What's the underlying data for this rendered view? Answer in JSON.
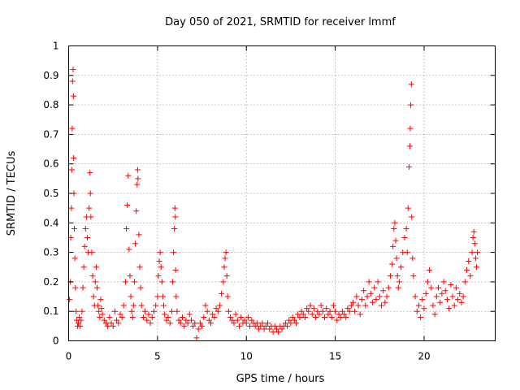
{
  "chart_data": {
    "type": "scatter",
    "title": "Day 050 of 2021, SRMTID for receiver lmmf",
    "xlabel": "GPS time / hours",
    "ylabel": "SRMTID / TECUs",
    "xlim": [
      0,
      24
    ],
    "ylim": [
      0,
      1
    ],
    "x_ticks": [
      "0",
      "5",
      "10",
      "15",
      "20"
    ],
    "y_ticks": [
      "0",
      "0.1",
      "0.2",
      "0.3",
      "0.4",
      "0.5",
      "0.6",
      "0.7",
      "0.8",
      "0.9",
      "1"
    ],
    "grid": true,
    "marker": "+",
    "series": [
      {
        "name": "SRMTID",
        "color": "#ff0000",
        "points": [
          [
            0.05,
            0.14
          ],
          [
            0.1,
            0.2
          ],
          [
            0.12,
            0.35
          ],
          [
            0.15,
            0.45
          ],
          [
            0.18,
            0.58
          ],
          [
            0.2,
            0.72
          ],
          [
            0.22,
            0.88
          ],
          [
            0.25,
            0.92
          ],
          [
            0.27,
            0.83
          ],
          [
            0.28,
            0.62
          ],
          [
            0.3,
            0.5
          ],
          [
            0.32,
            0.38
          ],
          [
            0.35,
            0.28
          ],
          [
            0.38,
            0.18
          ],
          [
            0.42,
            0.1
          ],
          [
            0.45,
            0.07
          ],
          [
            0.5,
            0.05
          ],
          [
            0.55,
            0.06
          ],
          [
            0.6,
            0.08
          ],
          [
            0.65,
            0.05
          ],
          [
            0.7,
            0.07
          ],
          [
            0.75,
            0.1
          ],
          [
            0.8,
            0.18
          ],
          [
            0.85,
            0.25
          ],
          [
            0.9,
            0.32
          ],
          [
            0.95,
            0.38
          ],
          [
            1.0,
            0.42
          ],
          [
            1.05,
            0.35
          ],
          [
            1.1,
            0.3
          ],
          [
            1.15,
            0.45
          ],
          [
            1.2,
            0.57
          ],
          [
            1.22,
            0.5
          ],
          [
            1.25,
            0.42
          ],
          [
            1.3,
            0.3
          ],
          [
            1.35,
            0.22
          ],
          [
            1.4,
            0.15
          ],
          [
            1.45,
            0.12
          ],
          [
            1.5,
            0.2
          ],
          [
            1.55,
            0.25
          ],
          [
            1.6,
            0.18
          ],
          [
            1.65,
            0.12
          ],
          [
            1.7,
            0.1
          ],
          [
            1.75,
            0.08
          ],
          [
            1.8,
            0.14
          ],
          [
            1.85,
            0.11
          ],
          [
            1.9,
            0.09
          ],
          [
            2.0,
            0.07
          ],
          [
            2.1,
            0.06
          ],
          [
            2.2,
            0.05
          ],
          [
            2.3,
            0.08
          ],
          [
            2.4,
            0.06
          ],
          [
            2.5,
            0.05
          ],
          [
            2.6,
            0.1
          ],
          [
            2.7,
            0.07
          ],
          [
            2.8,
            0.06
          ],
          [
            2.9,
            0.09
          ],
          [
            3.0,
            0.08
          ],
          [
            3.1,
            0.12
          ],
          [
            3.2,
            0.2
          ],
          [
            3.25,
            0.38
          ],
          [
            3.3,
            0.46
          ],
          [
            3.35,
            0.56
          ],
          [
            3.4,
            0.31
          ],
          [
            3.45,
            0.22
          ],
          [
            3.5,
            0.15
          ],
          [
            3.55,
            0.1
          ],
          [
            3.6,
            0.08
          ],
          [
            3.65,
            0.12
          ],
          [
            3.7,
            0.2
          ],
          [
            3.75,
            0.33
          ],
          [
            3.8,
            0.44
          ],
          [
            3.85,
            0.53
          ],
          [
            3.88,
            0.58
          ],
          [
            3.9,
            0.55
          ],
          [
            3.95,
            0.36
          ],
          [
            4.0,
            0.25
          ],
          [
            4.05,
            0.18
          ],
          [
            4.1,
            0.12
          ],
          [
            4.2,
            0.08
          ],
          [
            4.3,
            0.1
          ],
          [
            4.4,
            0.07
          ],
          [
            4.5,
            0.09
          ],
          [
            4.6,
            0.06
          ],
          [
            4.7,
            0.08
          ],
          [
            4.8,
            0.1
          ],
          [
            4.9,
            0.12
          ],
          [
            5.0,
            0.15
          ],
          [
            5.05,
            0.22
          ],
          [
            5.1,
            0.27
          ],
          [
            5.15,
            0.3
          ],
          [
            5.2,
            0.25
          ],
          [
            5.25,
            0.2
          ],
          [
            5.3,
            0.15
          ],
          [
            5.35,
            0.12
          ],
          [
            5.4,
            0.09
          ],
          [
            5.5,
            0.07
          ],
          [
            5.6,
            0.08
          ],
          [
            5.7,
            0.06
          ],
          [
            5.8,
            0.1
          ],
          [
            5.85,
            0.2
          ],
          [
            5.9,
            0.3
          ],
          [
            5.95,
            0.38
          ],
          [
            5.98,
            0.45
          ],
          [
            6.0,
            0.42
          ],
          [
            6.02,
            0.24
          ],
          [
            6.05,
            0.15
          ],
          [
            6.1,
            0.1
          ],
          [
            6.2,
            0.07
          ],
          [
            6.3,
            0.06
          ],
          [
            6.4,
            0.08
          ],
          [
            6.5,
            0.05
          ],
          [
            6.6,
            0.07
          ],
          [
            6.7,
            0.06
          ],
          [
            6.8,
            0.09
          ],
          [
            6.9,
            0.07
          ],
          [
            7.0,
            0.05
          ],
          [
            7.1,
            0.06
          ],
          [
            7.2,
            0.01
          ],
          [
            7.3,
            0.04
          ],
          [
            7.4,
            0.06
          ],
          [
            7.5,
            0.05
          ],
          [
            7.6,
            0.08
          ],
          [
            7.7,
            0.12
          ],
          [
            7.8,
            0.1
          ],
          [
            7.9,
            0.07
          ],
          [
            8.0,
            0.06
          ],
          [
            8.1,
            0.09
          ],
          [
            8.2,
            0.08
          ],
          [
            8.3,
            0.11
          ],
          [
            8.4,
            0.1
          ],
          [
            8.5,
            0.12
          ],
          [
            8.6,
            0.16
          ],
          [
            8.7,
            0.2
          ],
          [
            8.75,
            0.25
          ],
          [
            8.8,
            0.28
          ],
          [
            8.85,
            0.3
          ],
          [
            8.9,
            0.22
          ],
          [
            8.95,
            0.15
          ],
          [
            9.0,
            0.1
          ],
          [
            9.1,
            0.08
          ],
          [
            9.2,
            0.07
          ],
          [
            9.3,
            0.06
          ],
          [
            9.4,
            0.09
          ],
          [
            9.5,
            0.07
          ],
          [
            9.6,
            0.05
          ],
          [
            9.7,
            0.08
          ],
          [
            9.8,
            0.06
          ],
          [
            9.9,
            0.07
          ],
          [
            10.0,
            0.06
          ],
          [
            10.1,
            0.08
          ],
          [
            10.2,
            0.05
          ],
          [
            10.3,
            0.07
          ],
          [
            10.4,
            0.06
          ],
          [
            10.5,
            0.05
          ],
          [
            10.6,
            0.06
          ],
          [
            10.7,
            0.04
          ],
          [
            10.8,
            0.05
          ],
          [
            10.9,
            0.06
          ],
          [
            11.0,
            0.04
          ],
          [
            11.1,
            0.05
          ],
          [
            11.2,
            0.06
          ],
          [
            11.3,
            0.04
          ],
          [
            11.4,
            0.05
          ],
          [
            11.5,
            0.03
          ],
          [
            11.6,
            0.05
          ],
          [
            11.7,
            0.04
          ],
          [
            11.8,
            0.03
          ],
          [
            11.9,
            0.05
          ],
          [
            12.0,
            0.04
          ],
          [
            12.1,
            0.05
          ],
          [
            12.2,
            0.06
          ],
          [
            12.3,
            0.05
          ],
          [
            12.4,
            0.07
          ],
          [
            12.5,
            0.06
          ],
          [
            12.6,
            0.08
          ],
          [
            12.7,
            0.07
          ],
          [
            12.8,
            0.06
          ],
          [
            12.9,
            0.09
          ],
          [
            13.0,
            0.08
          ],
          [
            13.1,
            0.1
          ],
          [
            13.2,
            0.09
          ],
          [
            13.3,
            0.08
          ],
          [
            13.4,
            0.11
          ],
          [
            13.5,
            0.1
          ],
          [
            13.6,
            0.12
          ],
          [
            13.7,
            0.09
          ],
          [
            13.8,
            0.11
          ],
          [
            13.9,
            0.08
          ],
          [
            14.0,
            0.1
          ],
          [
            14.1,
            0.09
          ],
          [
            14.2,
            0.12
          ],
          [
            14.3,
            0.1
          ],
          [
            14.4,
            0.08
          ],
          [
            14.5,
            0.11
          ],
          [
            14.6,
            0.09
          ],
          [
            14.7,
            0.1
          ],
          [
            14.8,
            0.08
          ],
          [
            14.9,
            0.12
          ],
          [
            15.0,
            0.1
          ],
          [
            15.1,
            0.07
          ],
          [
            15.2,
            0.09
          ],
          [
            15.3,
            0.08
          ],
          [
            15.4,
            0.1
          ],
          [
            15.5,
            0.09
          ],
          [
            15.6,
            0.08
          ],
          [
            15.7,
            0.11
          ],
          [
            15.8,
            0.1
          ],
          [
            15.9,
            0.12
          ],
          [
            16.0,
            0.13
          ],
          [
            16.1,
            0.1
          ],
          [
            16.2,
            0.15
          ],
          [
            16.3,
            0.12
          ],
          [
            16.4,
            0.09
          ],
          [
            16.5,
            0.14
          ],
          [
            16.6,
            0.17
          ],
          [
            16.7,
            0.12
          ],
          [
            16.8,
            0.15
          ],
          [
            16.9,
            0.2
          ],
          [
            17.0,
            0.16
          ],
          [
            17.1,
            0.13
          ],
          [
            17.2,
            0.18
          ],
          [
            17.3,
            0.14
          ],
          [
            17.4,
            0.2
          ],
          [
            17.5,
            0.15
          ],
          [
            17.6,
            0.12
          ],
          [
            17.7,
            0.17
          ],
          [
            17.8,
            0.13
          ],
          [
            17.9,
            0.15
          ],
          [
            18.0,
            0.18
          ],
          [
            18.1,
            0.22
          ],
          [
            18.2,
            0.26
          ],
          [
            18.25,
            0.32
          ],
          [
            18.3,
            0.38
          ],
          [
            18.35,
            0.4
          ],
          [
            18.4,
            0.34
          ],
          [
            18.45,
            0.28
          ],
          [
            18.5,
            0.22
          ],
          [
            18.55,
            0.18
          ],
          [
            18.6,
            0.2
          ],
          [
            18.7,
            0.25
          ],
          [
            18.8,
            0.3
          ],
          [
            18.9,
            0.35
          ],
          [
            19.0,
            0.38
          ],
          [
            19.05,
            0.3
          ],
          [
            19.1,
            0.45
          ],
          [
            19.15,
            0.59
          ],
          [
            19.2,
            0.66
          ],
          [
            19.22,
            0.72
          ],
          [
            19.25,
            0.8
          ],
          [
            19.28,
            0.87
          ],
          [
            19.3,
            0.42
          ],
          [
            19.35,
            0.28
          ],
          [
            19.4,
            0.22
          ],
          [
            19.5,
            0.15
          ],
          [
            19.6,
            0.1
          ],
          [
            19.7,
            0.12
          ],
          [
            19.8,
            0.08
          ],
          [
            19.9,
            0.14
          ],
          [
            20.0,
            0.11
          ],
          [
            20.1,
            0.16
          ],
          [
            20.2,
            0.2
          ],
          [
            20.3,
            0.24
          ],
          [
            20.4,
            0.18
          ],
          [
            20.5,
            0.12
          ],
          [
            20.6,
            0.09
          ],
          [
            20.7,
            0.15
          ],
          [
            20.8,
            0.18
          ],
          [
            20.9,
            0.13
          ],
          [
            21.0,
            0.16
          ],
          [
            21.1,
            0.2
          ],
          [
            21.2,
            0.17
          ],
          [
            21.3,
            0.14
          ],
          [
            21.4,
            0.11
          ],
          [
            21.5,
            0.19
          ],
          [
            21.6,
            0.15
          ],
          [
            21.7,
            0.12
          ],
          [
            21.8,
            0.18
          ],
          [
            21.9,
            0.14
          ],
          [
            22.0,
            0.16
          ],
          [
            22.1,
            0.13
          ],
          [
            22.2,
            0.15
          ],
          [
            22.3,
            0.2
          ],
          [
            22.4,
            0.24
          ],
          [
            22.5,
            0.27
          ],
          [
            22.6,
            0.22
          ],
          [
            22.7,
            0.3
          ],
          [
            22.75,
            0.35
          ],
          [
            22.8,
            0.37
          ],
          [
            22.85,
            0.33
          ],
          [
            22.9,
            0.28
          ],
          [
            22.95,
            0.25
          ],
          [
            23.0,
            0.3
          ]
        ]
      }
    ]
  }
}
